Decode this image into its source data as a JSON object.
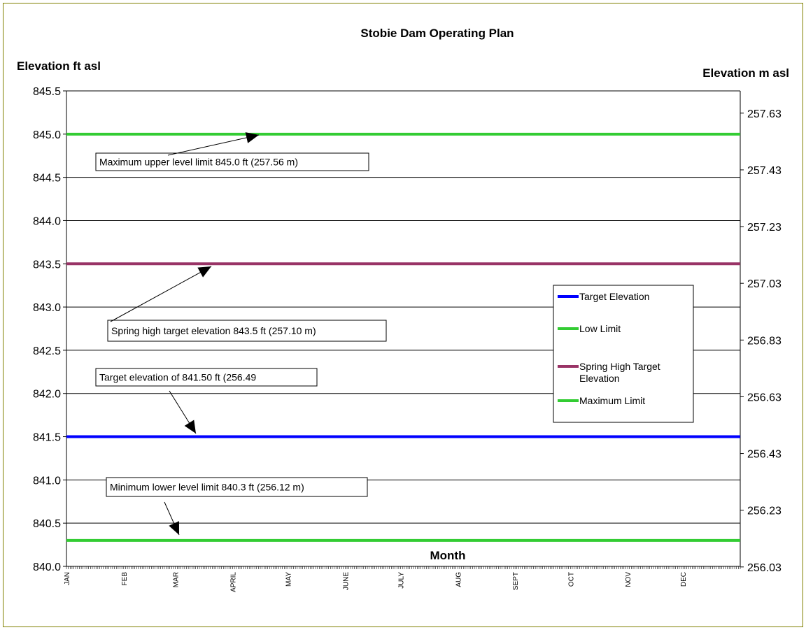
{
  "chart_data": {
    "type": "line",
    "title": "Stobie Dam Operating Plan",
    "ylabel": "Elevation ft asl",
    "y2label": "Elevation m asl",
    "xlabel": "Month",
    "categories": [
      "JAN",
      "FEB",
      "MAR",
      "APRIL",
      "MAY",
      "JUNE",
      "JULY",
      "AUG",
      "SEPT",
      "OCT",
      "NOV",
      "DEC"
    ],
    "ylim": [
      840.0,
      845.5
    ],
    "yticks": [
      "840.0",
      "840.5",
      "841.0",
      "841.5",
      "842.0",
      "842.5",
      "843.0",
      "843.5",
      "844.0",
      "844.5",
      "845.0",
      "845.5"
    ],
    "y2ticks": [
      "256.03",
      "256.23",
      "256.43",
      "256.63",
      "256.83",
      "257.03",
      "257.23",
      "257.43",
      "257.63"
    ],
    "grid": true,
    "legend_position": "right",
    "series": [
      {
        "name": "Target Elevation",
        "color": "#0000ff",
        "value": 841.5
      },
      {
        "name": "Low Limit",
        "color": "#33cc33",
        "value": 840.3
      },
      {
        "name": "Spring High Target Elevation",
        "color": "#993366",
        "value": 843.5
      },
      {
        "name": "Maximum Limit",
        "color": "#33cc33",
        "value": 845.0
      }
    ],
    "annotations": [
      {
        "text": "Maximum upper level limit 845.0 ft (257.56 m)",
        "value": 845.0,
        "month": "MAY"
      },
      {
        "text": "Spring high target elevation 843.5 ft (257.10 m)",
        "value": 843.5,
        "month": "APRIL"
      },
      {
        "text": "Target elevation of 841.50 ft (256.49",
        "value": 841.5,
        "month": "MAR"
      },
      {
        "text": "Minimum lower level limit 840.3 ft (256.12 m)",
        "value": 840.3,
        "month": "MAR"
      }
    ]
  }
}
